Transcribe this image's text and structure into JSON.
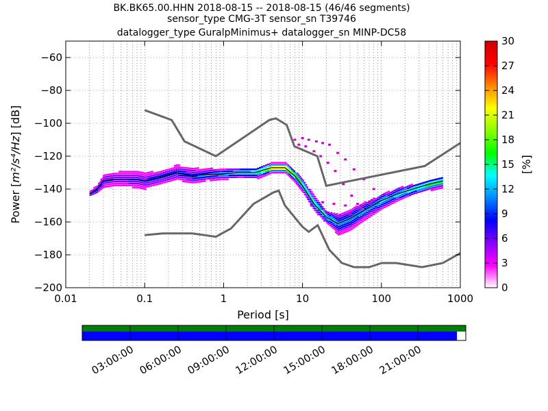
{
  "title": [
    "BK.BK65.00.HHN   2018-08-15 -- 2018-08-15  (46/46 segments)",
    "sensor_type CMG-3T sensor_sn T39746",
    "datalogger_type GuralpMinimus+ datalogger_sn MINP-DC58"
  ],
  "chart_data": {
    "type": "heatmap",
    "xlabel": "Period [s]",
    "ylabel_prefix": "Power [",
    "ylabel_units": "m²/s⁴/Hz",
    "ylabel_suffix": "] [dB]",
    "xscale": "log",
    "xlim": [
      0.01,
      1000
    ],
    "ylim": [
      -200,
      -50
    ],
    "xticks": [
      {
        "v": 0.01,
        "label": "0.01"
      },
      {
        "v": 0.1,
        "label": "0.1"
      },
      {
        "v": 1,
        "label": "1"
      },
      {
        "v": 10,
        "label": "10"
      },
      {
        "v": 100,
        "label": "100"
      },
      {
        "v": 1000,
        "label": "1000"
      }
    ],
    "yticks": [
      -60,
      -80,
      -100,
      -120,
      -140,
      -160,
      -180,
      -200
    ],
    "grid": true,
    "colorbar": {
      "label": "[%]",
      "min": 0,
      "max": 30,
      "ticks": [
        0,
        3,
        6,
        9,
        12,
        15,
        18,
        21,
        24,
        27,
        30
      ],
      "colors": [
        "#ffffff",
        "#ff00ff",
        "#8800ff",
        "#0000ff",
        "#0088ff",
        "#00ffff",
        "#00ff00",
        "#88ff00",
        "#ffff00",
        "#ff8800",
        "#ff0000",
        "#cc0000"
      ]
    },
    "nhnm": [
      [
        0.1,
        -92
      ],
      [
        0.22,
        -98
      ],
      [
        0.32,
        -111
      ],
      [
        0.8,
        -120
      ],
      [
        3.8,
        -98
      ],
      [
        4.6,
        -97
      ],
      [
        6.3,
        -101
      ],
      [
        7.9,
        -114
      ],
      [
        15.4,
        -120
      ],
      [
        20,
        -138
      ],
      [
        354,
        -126
      ],
      [
        1000,
        -112
      ]
    ],
    "nlnm": [
      [
        0.1,
        -168
      ],
      [
        0.17,
        -167
      ],
      [
        0.4,
        -167
      ],
      [
        0.8,
        -169
      ],
      [
        1.24,
        -164
      ],
      [
        2.4,
        -149
      ],
      [
        4.3,
        -142
      ],
      [
        5,
        -141
      ],
      [
        6,
        -150
      ],
      [
        10,
        -163
      ],
      [
        12,
        -166
      ],
      [
        15.6,
        -162
      ],
      [
        21.9,
        -177
      ],
      [
        31.6,
        -185
      ],
      [
        45,
        -187.5
      ],
      [
        70,
        -187.5
      ],
      [
        101,
        -185
      ],
      [
        154,
        -185
      ],
      [
        328,
        -187.5
      ],
      [
        600,
        -185
      ],
      [
        1000,
        -179
      ]
    ],
    "psd_bands": [
      {
        "period": 0.02,
        "median": -143,
        "lo": -145,
        "hi": -141,
        "peak_pct": 10
      },
      {
        "period": 0.025,
        "median": -140,
        "lo": -143,
        "hi": -137,
        "peak_pct": 9
      },
      {
        "period": 0.03,
        "median": -135,
        "lo": -140,
        "hi": -131,
        "peak_pct": 8
      },
      {
        "period": 0.04,
        "median": -134,
        "lo": -139,
        "hi": -129,
        "peak_pct": 7
      },
      {
        "period": 0.06,
        "median": -134,
        "lo": -139,
        "hi": -128,
        "peak_pct": 7
      },
      {
        "period": 0.08,
        "median": -134,
        "lo": -139,
        "hi": -128,
        "peak_pct": 8
      },
      {
        "period": 0.1,
        "median": -135,
        "lo": -140,
        "hi": -129,
        "peak_pct": 8
      },
      {
        "period": 0.15,
        "median": -133,
        "lo": -138,
        "hi": -129,
        "peak_pct": 9
      },
      {
        "period": 0.25,
        "median": -130,
        "lo": -135,
        "hi": -125,
        "peak_pct": 9
      },
      {
        "period": 0.4,
        "median": -132,
        "lo": -136,
        "hi": -126,
        "peak_pct": 10
      },
      {
        "period": 0.6,
        "median": -131,
        "lo": -135,
        "hi": -127,
        "peak_pct": 11
      },
      {
        "period": 0.9,
        "median": -131,
        "lo": -134,
        "hi": -127,
        "peak_pct": 12
      },
      {
        "period": 1.5,
        "median": -130,
        "lo": -134,
        "hi": -127,
        "peak_pct": 14
      },
      {
        "period": 2.5,
        "median": -130,
        "lo": -134,
        "hi": -127,
        "peak_pct": 16
      },
      {
        "period": 4,
        "median": -127,
        "lo": -130,
        "hi": -124,
        "peak_pct": 25
      },
      {
        "period": 6,
        "median": -127,
        "lo": -130,
        "hi": -124,
        "peak_pct": 26
      },
      {
        "period": 8,
        "median": -132,
        "lo": -136,
        "hi": -129,
        "peak_pct": 20
      },
      {
        "period": 10,
        "median": -138,
        "lo": -142,
        "hi": -134,
        "peak_pct": 18
      },
      {
        "period": 14,
        "median": -149,
        "lo": -153,
        "hi": -144,
        "peak_pct": 16
      },
      {
        "period": 20,
        "median": -157,
        "lo": -163,
        "hi": -154,
        "peak_pct": 14
      },
      {
        "period": 28,
        "median": -161,
        "lo": -169,
        "hi": -155,
        "peak_pct": 12
      },
      {
        "period": 40,
        "median": -158,
        "lo": -166,
        "hi": -152,
        "peak_pct": 12
      },
      {
        "period": 60,
        "median": -153,
        "lo": -160,
        "hi": -148,
        "peak_pct": 12
      },
      {
        "period": 100,
        "median": -147,
        "lo": -153,
        "hi": -143,
        "peak_pct": 13
      },
      {
        "period": 160,
        "median": -143,
        "lo": -148,
        "hi": -139,
        "peak_pct": 14
      },
      {
        "period": 250,
        "median": -140,
        "lo": -144,
        "hi": -137,
        "peak_pct": 16
      },
      {
        "period": 400,
        "median": -137,
        "lo": -141,
        "hi": -134,
        "peak_pct": 17
      },
      {
        "period": 600,
        "median": -135,
        "lo": -139,
        "hi": -132,
        "peak_pct": 18
      }
    ],
    "scatter_outliers": [
      [
        8,
        -110
      ],
      [
        10,
        -109
      ],
      [
        12,
        -110
      ],
      [
        15,
        -111
      ],
      [
        18,
        -112
      ],
      [
        22,
        -113
      ],
      [
        28,
        -118
      ],
      [
        35,
        -122
      ],
      [
        45,
        -128
      ],
      [
        60,
        -134
      ],
      [
        80,
        -140
      ],
      [
        9,
        -113
      ],
      [
        11,
        -114
      ],
      [
        14,
        -117
      ],
      [
        17,
        -120
      ],
      [
        21,
        -124
      ],
      [
        26,
        -129
      ],
      [
        33,
        -137
      ],
      [
        42,
        -144
      ],
      [
        55,
        -150
      ],
      [
        12,
        -145
      ],
      [
        18,
        -148
      ],
      [
        25,
        -149
      ],
      [
        35,
        -150
      ],
      [
        50,
        -149
      ],
      [
        70,
        -148
      ],
      [
        13,
        -150
      ],
      [
        20,
        -154
      ],
      [
        30,
        -156
      ],
      [
        40,
        -155
      ],
      [
        55,
        -152
      ]
    ],
    "timeline": {
      "ticks": [
        "03:00:00",
        "06:00:00",
        "09:00:00",
        "12:00:00",
        "15:00:00",
        "18:00:00",
        "21:00:00"
      ],
      "coverage_fraction": 0.977,
      "colors": {
        "top": "#008000",
        "bottom": "#0000ff"
      }
    }
  }
}
